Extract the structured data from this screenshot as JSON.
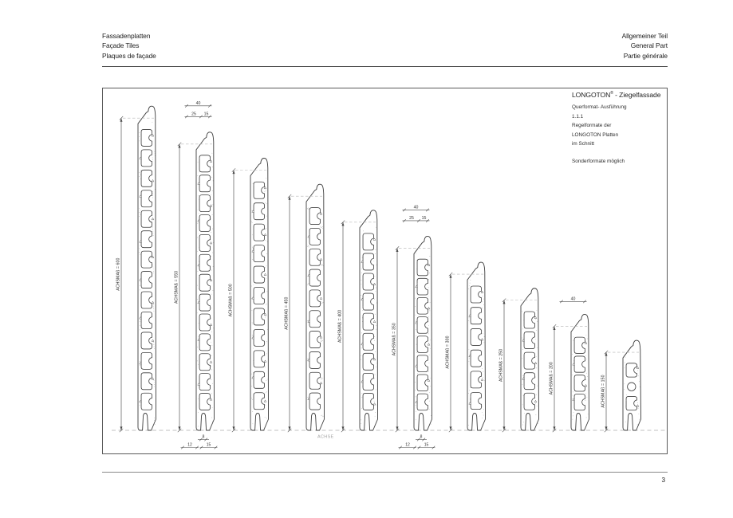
{
  "page": {
    "header_left": [
      "Fassadenplatten",
      "Façade Tiles",
      "Plaques de façade"
    ],
    "header_right": [
      "Allgemeiner Teil",
      "General Part",
      "Partie générale"
    ],
    "page_number": "3"
  },
  "title_block": {
    "product": "LONGOTON",
    "registered_mark": "®",
    "title_suffix": "- Ziegelfassade",
    "lines": [
      "Querformat- Ausführung",
      "1.1.1",
      "Regelformate der",
      "LONGOTON Platten",
      "im Schnitt"
    ],
    "note": "Sonderformate möglich"
  },
  "drawing": {
    "axis_label": "ACHSE",
    "panels": [
      {
        "value": 600,
        "label": "ACHSMAß = 600",
        "chambers": 14
      },
      {
        "value": 550,
        "label": "ACHSMAß = 550",
        "chambers": 13
      },
      {
        "value": 500,
        "label": "ACHSMAß = 500",
        "chambers": 11
      },
      {
        "value": 450,
        "label": "ACHSMAß = 450",
        "chambers": 10
      },
      {
        "value": 400,
        "label": "ACHSMAß = 400",
        "chambers": 9
      },
      {
        "value": 350,
        "label": "ACHSMAß = 350",
        "chambers": 8
      },
      {
        "value": 300,
        "label": "ACHSMAß = 300",
        "chambers": 6
      },
      {
        "value": 250,
        "label": "ACHSMAß = 250",
        "chambers": 5
      },
      {
        "value": 200,
        "label": "ACHSMAß = 200",
        "chambers": 4
      },
      {
        "value": 150,
        "label": "ACHSMAß = 150",
        "chambers": 3,
        "circle_cell": 1
      }
    ],
    "top_dims": [
      {
        "panel": 1,
        "total": "40",
        "parts": [
          "25",
          "15"
        ]
      },
      {
        "panel": 5,
        "total": "40",
        "parts": [
          "25",
          "15"
        ]
      },
      {
        "panel": 8,
        "total": "40",
        "parts": []
      }
    ],
    "bottom_dims": [
      {
        "panel": 1,
        "groove": "8",
        "parts": [
          "12",
          "15"
        ]
      },
      {
        "panel": 5,
        "groove": "8",
        "parts": [
          "12",
          "15"
        ]
      }
    ],
    "colors": {
      "line": "#3c3c3c",
      "dim": "#4a4a4a",
      "axis": "#c2c2c2",
      "muted_text": "#a0a0a0",
      "text": "#1f1f1f"
    }
  }
}
